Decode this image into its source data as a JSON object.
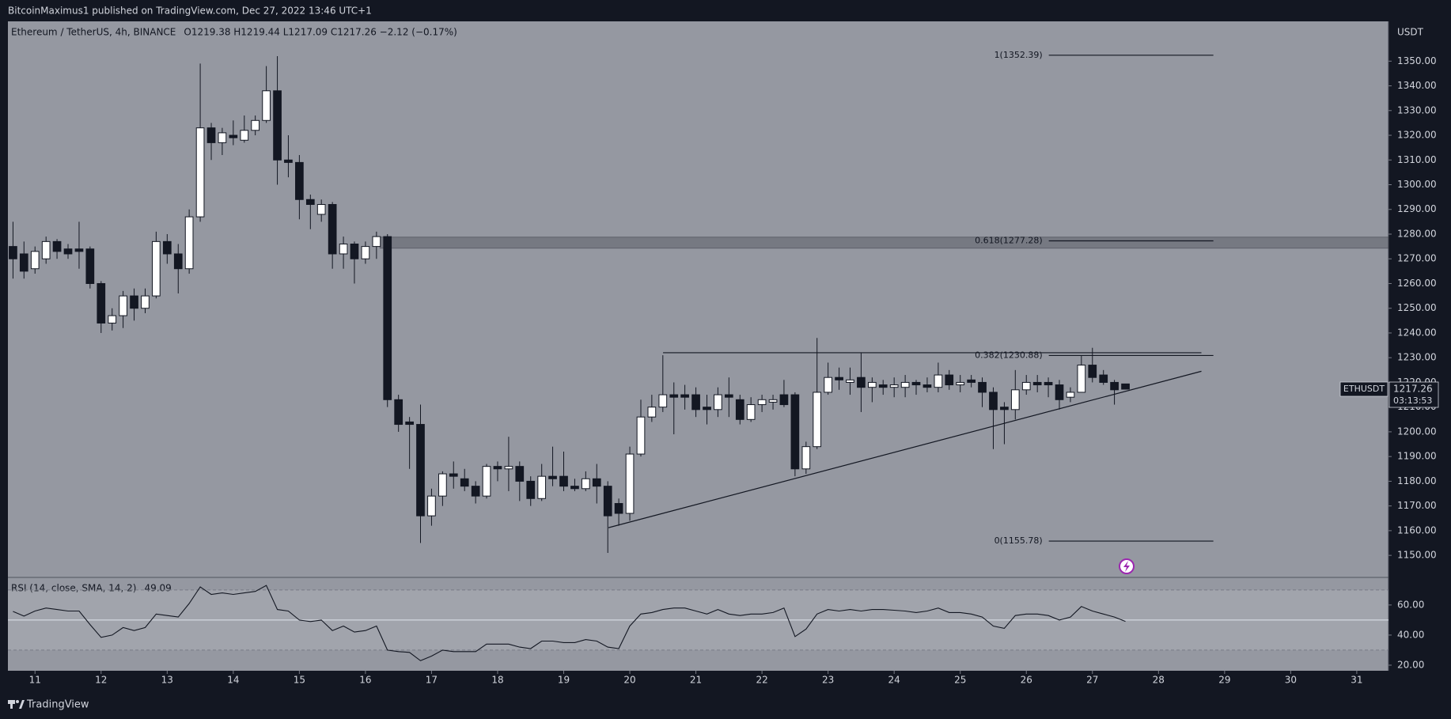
{
  "chart_data": {
    "type": "candlestick",
    "header": "BitcoinMaximus1 published on TradingView.com, Dec 27, 2022 13:46 UTC+1",
    "symbol": "Ethereum / TetherUS, 4h, BINANCE",
    "ohlc_legend": "O1219.38 H1219.44 L1217.09 C1217.26 −2.12 (−0.17%)",
    "currency": "USDT",
    "x": [
      10.667,
      10.833,
      11,
      11.167,
      11.333,
      11.5,
      11.667,
      11.833,
      12,
      12.167,
      12.333,
      12.5,
      12.667,
      12.833,
      13,
      13.167,
      13.333,
      13.5,
      13.667,
      13.833,
      14,
      14.167,
      14.333,
      14.5,
      14.667,
      14.833,
      15,
      15.167,
      15.333,
      15.5,
      15.667,
      15.833,
      16,
      16.167,
      16.333,
      16.5,
      16.667,
      16.833,
      17,
      17.167,
      17.333,
      17.5,
      17.667,
      17.833,
      18,
      18.167,
      18.333,
      18.5,
      18.667,
      18.833,
      19,
      19.167,
      19.333,
      19.5,
      19.667,
      19.833,
      20,
      20.167,
      20.333,
      20.5,
      20.667,
      20.833,
      21,
      21.167,
      21.333,
      21.5,
      21.667,
      21.833,
      22,
      22.167,
      22.333,
      22.5,
      22.667,
      22.833,
      23,
      23.167,
      23.333,
      23.5,
      23.667,
      23.833,
      24,
      24.167,
      24.333,
      24.5,
      24.667,
      24.833,
      25,
      25.167,
      25.333,
      25.5,
      25.667,
      25.833,
      26,
      26.167,
      26.333,
      26.5,
      26.667,
      26.833,
      27,
      27.167,
      27.333,
      27.5
    ],
    "open": [
      1275,
      1272,
      1266,
      1270,
      1277,
      1274,
      1274,
      1274,
      1260,
      1244,
      1247,
      1255,
      1250,
      1255,
      1277,
      1272,
      1266,
      1287,
      1323,
      1317,
      1320,
      1318,
      1322,
      1326,
      1338,
      1310,
      1309,
      1294,
      1288,
      1292,
      1272,
      1276,
      1270,
      1275,
      1279,
      1213,
      1204,
      1203,
      1166,
      1174,
      1183,
      1181,
      1178,
      1174,
      1186,
      1185,
      1186,
      1180,
      1173,
      1182,
      1182,
      1178,
      1177,
      1181,
      1178,
      1171,
      1167,
      1191,
      1206,
      1210,
      1215,
      1215,
      1215,
      1210,
      1209,
      1215,
      1213,
      1205,
      1211,
      1212,
      1215,
      1215,
      1185,
      1194,
      1216,
      1222,
      1220,
      1222,
      1218,
      1219,
      1218,
      1218,
      1220,
      1219,
      1218,
      1223,
      1219,
      1221,
      1220,
      1216,
      1210,
      1209,
      1217,
      1220,
      1220,
      1219,
      1214,
      1216,
      1227,
      1223,
      1220,
      1219.38
    ],
    "high": [
      1285,
      1277,
      1275,
      1279,
      1278,
      1276,
      1285,
      1275,
      1261,
      1250,
      1257,
      1258,
      1258,
      1281,
      1280,
      1276,
      1290,
      1349,
      1325,
      1323,
      1326,
      1328,
      1328,
      1348,
      1352,
      1320,
      1312,
      1296,
      1294,
      1293,
      1279,
      1277,
      1277,
      1281,
      1280,
      1215,
      1206,
      1211,
      1177,
      1184,
      1188,
      1185,
      1180,
      1187,
      1188,
      1198,
      1188,
      1182,
      1187,
      1194,
      1192,
      1181,
      1184,
      1187,
      1180,
      1173,
      1194,
      1213,
      1215,
      1231,
      1220,
      1219,
      1218,
      1215,
      1218,
      1222,
      1215,
      1214,
      1215,
      1215,
      1221,
      1216,
      1196,
      1238,
      1228,
      1226,
      1226,
      1232,
      1222,
      1221,
      1222,
      1223,
      1221,
      1222,
      1228,
      1225,
      1223,
      1223,
      1222,
      1218,
      1212,
      1225,
      1223,
      1223,
      1222,
      1221,
      1218,
      1231,
      1234,
      1225,
      1221,
      1219.44
    ],
    "low": [
      1262,
      1262,
      1264,
      1268,
      1270,
      1270,
      1266,
      1258,
      1240,
      1241,
      1242,
      1245,
      1248,
      1254,
      1268,
      1256,
      1264,
      1285,
      1310,
      1312,
      1316,
      1317,
      1320,
      1325,
      1300,
      1303,
      1286,
      1282,
      1285,
      1266,
      1266,
      1260,
      1268,
      1270,
      1210,
      1200,
      1185,
      1155,
      1162,
      1170,
      1177,
      1176,
      1171,
      1173,
      1180,
      1176,
      1172,
      1170,
      1172,
      1178,
      1176,
      1176,
      1176,
      1171,
      1151,
      1162,
      1164,
      1190,
      1204,
      1208,
      1199,
      1209,
      1206,
      1203,
      1206,
      1206,
      1203,
      1204,
      1208,
      1209,
      1210,
      1182,
      1183,
      1193,
      1215,
      1217,
      1215,
      1208,
      1212,
      1215,
      1214,
      1214,
      1215,
      1216,
      1216,
      1217,
      1216,
      1218,
      1210,
      1193,
      1195,
      1205,
      1215,
      1216,
      1214,
      1209,
      1212,
      1216,
      1220,
      1219,
      1211,
      1217.09
    ],
    "close": [
      1270,
      1265,
      1273,
      1277,
      1273,
      1272,
      1273,
      1260,
      1244,
      1247,
      1255,
      1250,
      1255,
      1277,
      1272,
      1266,
      1287,
      1323,
      1317,
      1321,
      1319,
      1322,
      1326,
      1338,
      1310,
      1309,
      1294,
      1292,
      1292,
      1272,
      1276,
      1270,
      1275,
      1279,
      1213,
      1203,
      1203,
      1166,
      1174,
      1183,
      1182,
      1178,
      1174,
      1186,
      1185,
      1186,
      1180,
      1173,
      1182,
      1181,
      1178,
      1177,
      1181,
      1178,
      1166,
      1167,
      1191,
      1206,
      1210,
      1215,
      1214,
      1214,
      1209,
      1209,
      1215,
      1214,
      1205,
      1211,
      1213,
      1213,
      1211,
      1185,
      1194,
      1216,
      1222,
      1221,
      1221,
      1218,
      1220,
      1218,
      1219,
      1220,
      1219,
      1218,
      1223,
      1219,
      1220,
      1220,
      1216,
      1209,
      1209,
      1217,
      1220,
      1219,
      1219,
      1213,
      1216,
      1227,
      1222,
      1220,
      1217,
      1217.26
    ],
    "up_color": "#ffffff",
    "down_color": "#131722",
    "xlim": [
      10.59,
      31.48
    ],
    "xticks": [
      11,
      12,
      13,
      14,
      15,
      16,
      17,
      18,
      19,
      20,
      21,
      22,
      23,
      24,
      25,
      26,
      27,
      28,
      29,
      30,
      31
    ],
    "ylim": [
      1141.4,
      1366.1
    ],
    "yticks": [
      {
        "value": 1150,
        "label": "1150.00"
      },
      {
        "value": 1160,
        "label": "1160.00"
      },
      {
        "value": 1170,
        "label": "1170.00"
      },
      {
        "value": 1180,
        "label": "1180.00"
      },
      {
        "value": 1190,
        "label": "1190.00"
      },
      {
        "value": 1200,
        "label": "1200.00"
      },
      {
        "value": 1210,
        "label": "1210.00"
      },
      {
        "value": 1220,
        "label": "1220.00"
      },
      {
        "value": 1230,
        "label": "1230.00"
      },
      {
        "value": 1240,
        "label": "1240.00"
      },
      {
        "value": 1250,
        "label": "1250.00"
      },
      {
        "value": 1260,
        "label": "1260.00"
      },
      {
        "value": 1270,
        "label": "1270.00"
      },
      {
        "value": 1280,
        "label": "1280.00"
      },
      {
        "value": 1290,
        "label": "1290.00"
      },
      {
        "value": 1300,
        "label": "1300.00"
      },
      {
        "value": 1310,
        "label": "1310.00"
      },
      {
        "value": 1320,
        "label": "1320.00"
      },
      {
        "value": 1330,
        "label": "1330.00"
      },
      {
        "value": 1340,
        "label": "1340.00"
      },
      {
        "value": 1350,
        "label": "1350.00"
      }
    ],
    "fib_levels": [
      {
        "value": 1352.39,
        "label": "1(1352.39)"
      },
      {
        "value": 1277.28,
        "label": "0.618(1277.28)"
      },
      {
        "value": 1230.88,
        "label": "0.382(1230.88)"
      },
      {
        "value": 1155.78,
        "label": "0(1155.78)"
      }
    ],
    "fib_xrange": [
      26.34,
      28.83
    ],
    "zone": {
      "low": 1274.3,
      "high": 1278.8,
      "x_start": 16.22
    },
    "trendlines": [
      {
        "x": [
          20.503,
          28.649
        ],
        "y": [
          1232,
          1232
        ]
      },
      {
        "x": [
          19.677,
          28.649
        ],
        "y": [
          1161.2,
          1224.5
        ]
      }
    ],
    "last_price": {
      "symbol": "ETHUSDT",
      "value": 1217.26,
      "countdown": "03:13:53"
    },
    "rsi": {
      "label": "RSI (14, close, SMA, 14, 2)",
      "last": 49.09,
      "color": "#131722",
      "values": [
        55.7,
        52.6,
        56,
        58,
        57,
        56,
        56,
        47,
        38.5,
        40,
        45,
        43,
        45,
        54,
        53,
        52,
        61,
        72,
        67,
        68,
        67,
        68,
        69,
        73,
        57,
        56,
        50,
        49,
        50,
        43,
        46,
        42,
        43,
        46,
        30,
        29,
        28.5,
        23,
        26,
        30,
        29,
        29,
        29,
        34,
        34,
        34,
        32,
        31,
        36,
        36,
        35,
        35,
        37,
        36,
        32,
        31,
        46,
        54,
        55,
        57,
        58,
        58,
        56,
        54,
        57,
        54,
        53,
        54,
        54,
        55,
        58,
        39,
        44,
        54,
        57,
        56,
        57,
        56,
        57,
        57,
        56.5,
        56,
        55,
        56,
        58,
        55,
        55,
        54,
        52,
        46,
        44.5,
        53,
        54,
        54,
        53,
        50,
        52,
        59,
        56,
        54,
        52,
        49.09
      ],
      "ylim": [
        16.3,
        77.8
      ],
      "yticks": [
        {
          "value": 20,
          "label": "20.00"
        },
        {
          "value": 40,
          "label": "40.00"
        },
        {
          "value": 60,
          "label": "60.00"
        }
      ],
      "band": [
        30,
        70
      ],
      "midline": 50
    },
    "footer": "TradingView"
  }
}
